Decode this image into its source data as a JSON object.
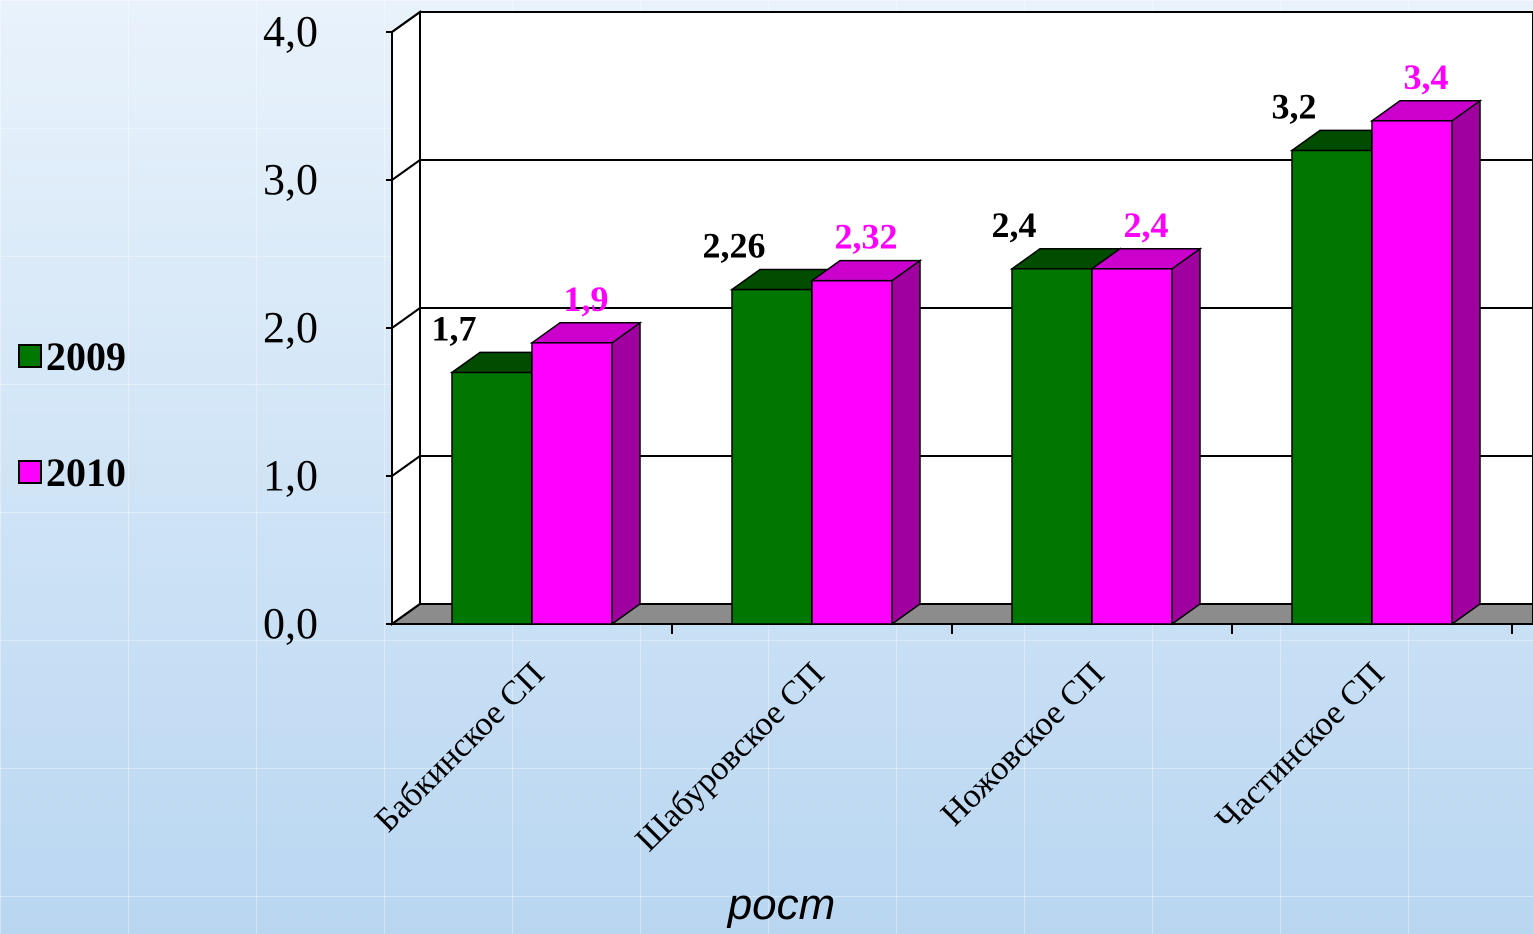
{
  "chart_data": {
    "type": "bar",
    "categories": [
      "Бабкинское СП",
      "Шабуровское СП",
      "Ножовское СП",
      "Частинское СП"
    ],
    "series": [
      {
        "name": "2009",
        "values": [
          1.7,
          2.26,
          2.4,
          3.2
        ],
        "labels": [
          "1,7",
          "2,26",
          "2,4",
          "3,2"
        ],
        "color": "#007700",
        "label_color": "#000000"
      },
      {
        "name": "2010",
        "values": [
          1.9,
          2.32,
          2.4,
          3.4
        ],
        "labels": [
          "1,9",
          "2,32",
          "2,4",
          "3,4"
        ],
        "color": "#ff00ff",
        "label_color": "#ff00ff"
      }
    ],
    "y_ticks": [
      "0,0",
      "1,0",
      "2,0",
      "3,0",
      "4,0"
    ],
    "ylim": [
      0,
      4
    ],
    "xlabel": "рост",
    "ylabel": "",
    "title": "",
    "legend_position": "left",
    "grid": true,
    "style": "3d"
  }
}
